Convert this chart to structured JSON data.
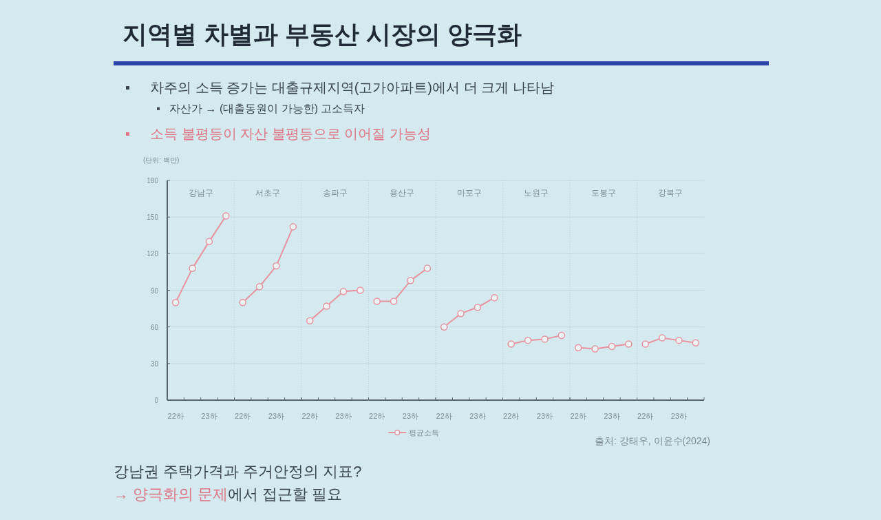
{
  "chart_data": [
    {
      "type": "other",
      "title": "지역별 차별과 부동산 시장의 양극화",
      "annotations": [
        "차주의 소득 증가는 대출규제지역(고가아파트)에서 더 크게 나타남",
        "자산가 → (대출동원이 가능한) 고소득자",
        "소득 불평등이 자산 불평등으로 이어질 가능성",
        "강남권 주택가격과 주거안정의 지표?",
        "→ 양극화의 문제",
        "에서 접근할 필요",
        "출처: 강태우, 이윤수(2024)"
      ]
    },
    {
      "type": "line",
      "title": "강남구",
      "ylabel": "(단위: 백만)",
      "categories": [
        "22하",
        null,
        "23하",
        null
      ],
      "series": [
        {
          "color": "#e8939f",
          "values": [
            80,
            108,
            130,
            151
          ]
        }
      ],
      "ylim": [
        0,
        180
      ],
      "yticks": [
        0,
        30,
        60,
        90,
        120,
        150,
        180
      ],
      "grid": "y",
      "marker": "circle"
    },
    {
      "type": "line",
      "title": "서초구",
      "categories": [
        "22하",
        null,
        "23하",
        null
      ],
      "series": [
        {
          "color": "#e8939f",
          "values": [
            80,
            93,
            110,
            142
          ]
        }
      ],
      "ylim": [
        0,
        180
      ],
      "yticks": [
        0,
        30,
        60,
        90,
        120,
        150,
        180
      ],
      "grid": "y",
      "marker": "circle",
      "tick_labels": "x"
    },
    {
      "type": "line",
      "title": "송파구",
      "categories": [
        "22하",
        null,
        "23하",
        null
      ],
      "series": [
        {
          "color": "#e8939f",
          "values": [
            65,
            77,
            89,
            90
          ]
        }
      ],
      "ylim": [
        0,
        180
      ],
      "yticks": [
        0,
        30,
        60,
        90,
        120,
        150,
        180
      ],
      "grid": "y",
      "marker": "circle",
      "tick_labels": "x"
    },
    {
      "type": "line",
      "title": "용산구",
      "categories": [
        "22하",
        null,
        "23하",
        null
      ],
      "series": [
        {
          "name": "평균소득",
          "color": "#e8939f",
          "values": [
            81,
            81,
            98,
            108
          ]
        }
      ],
      "ylim": [
        0,
        180
      ],
      "yticks": [
        0,
        30,
        60,
        90,
        120,
        150,
        180
      ],
      "grid": "y",
      "marker": "circle",
      "tick_labels": "x",
      "legend": "bottom"
    },
    {
      "type": "line",
      "title": "마포구",
      "categories": [
        "22하",
        null,
        "23하",
        null
      ],
      "series": [
        {
          "color": "#e8939f",
          "values": [
            60,
            71,
            76,
            84
          ]
        }
      ],
      "ylim": [
        0,
        180
      ],
      "yticks": [
        0,
        30,
        60,
        90,
        120,
        150,
        180
      ],
      "grid": "y",
      "marker": "circle",
      "tick_labels": "x"
    },
    {
      "type": "line",
      "title": "노원구",
      "categories": [
        "22하",
        null,
        "23하",
        null
      ],
      "series": [
        {
          "color": "#e8939f",
          "values": [
            46,
            49,
            50,
            53
          ]
        }
      ],
      "ylim": [
        0,
        180
      ],
      "yticks": [
        0,
        30,
        60,
        90,
        120,
        150,
        180
      ],
      "grid": "y",
      "marker": "circle",
      "tick_labels": "x"
    },
    {
      "type": "line",
      "title": "도봉구",
      "categories": [
        "22하",
        null,
        "23하",
        null
      ],
      "series": [
        {
          "color": "#e8939f",
          "values": [
            43,
            42,
            44,
            46
          ]
        }
      ],
      "ylim": [
        0,
        180
      ],
      "yticks": [
        0,
        30,
        60,
        90,
        120,
        150,
        180
      ],
      "grid": "y",
      "marker": "circle",
      "tick_labels": "x"
    },
    {
      "type": "line",
      "title": "강북구",
      "categories": [
        "22하",
        null,
        "23하",
        null
      ],
      "series": [
        {
          "color": "#e8939f",
          "values": [
            46,
            51,
            49,
            47
          ]
        }
      ],
      "ylim": [
        0,
        180
      ],
      "yticks": [
        0,
        30,
        60,
        90,
        120,
        150,
        180
      ],
      "grid": "y",
      "marker": "circle",
      "tick_labels": "x"
    }
  ]
}
